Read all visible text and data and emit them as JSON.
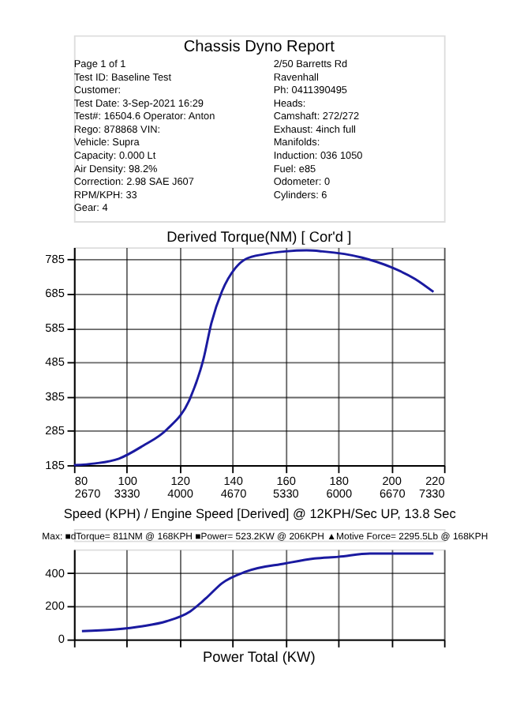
{
  "chart_data": [
    {
      "type": "other",
      "title": "Chassis Dyno Report",
      "annotations": [
        "Page 1 of 1",
        "2/50 Barretts Rd",
        "Test ID: Baseline Test",
        "Ravenhall",
        "Customer:",
        "Ph: 0411390495",
        "Test Date: 3-Sep-2021 16:29",
        "Heads:",
        "Test#: 16504.6 Operator: Anton",
        "Camshaft: 272/272",
        "Rego: 878868 VIN:",
        "Exhaust: 4inch full",
        "Vehicle: Supra",
        "Manifolds:",
        "Capacity: 0.000 Lt",
        "Induction: 036 1050",
        "Air Density: 98.2%",
        "Fuel: e85",
        "Correction: 2.98 SAE J607",
        "Odometer: 0",
        "RPM/KPH: 33",
        "Cylinders: 6",
        "Gear: 4"
      ]
    },
    {
      "type": "line",
      "title": "Derived Torque(NM)   [ Cor'd ]",
      "xlabel": "Speed (KPH) / Engine Speed [Derived] @ 12KPH/Sec UP, 13.8 Sec",
      "annotations": [
        "Max: ■dTorque= 811NM @ 168KPH ■Power= 523.2KW @ 206KPH ▲Motive Force= 2295.5Lb @ 168KPH"
      ],
      "x": [
        80,
        88,
        97,
        106,
        115,
        124,
        129,
        132,
        136,
        141,
        145,
        152,
        160,
        168,
        174,
        189,
        200,
        209,
        216
      ],
      "series": [
        {
          "color": "#1a1aa0",
          "values": [
            185,
            190,
            204,
            241,
            288,
            381,
            495,
            600,
            692,
            759,
            786,
            800,
            808,
            811,
            808,
            790,
            762,
            728,
            690
          ]
        }
      ],
      "xlim": [
        80,
        220
      ],
      "xticks": [
        80,
        100,
        120,
        140,
        160,
        180,
        200,
        220
      ],
      "x2lim": [
        2670,
        7330
      ],
      "x2ticks": [
        2670,
        3330,
        4000,
        4670,
        5330,
        6000,
        6670,
        7330
      ],
      "ylim": [
        185,
        820
      ],
      "yticks": [
        185,
        285,
        385,
        485,
        585,
        685,
        785
      ],
      "grid": true,
      "marker": "none",
      "line_style": "solid"
    },
    {
      "type": "line",
      "title": "Power Total (KW)",
      "x": [
        83,
        95,
        106,
        115,
        124,
        130,
        136,
        145,
        160,
        171,
        180,
        192,
        206,
        216
      ],
      "series": [
        {
          "color": "#1a1aa0",
          "values": [
            50,
            60,
            80,
            110,
            170,
            250,
            340,
            410,
            460,
            490,
            500,
            520,
            520,
            520
          ]
        }
      ],
      "xlim": [
        80,
        220
      ],
      "xticks": [
        80,
        100,
        120,
        140,
        160,
        180,
        200,
        220
      ],
      "ylim": [
        0,
        545
      ],
      "yticks": [
        0,
        200,
        400
      ],
      "tick_labels": "y",
      "grid": true,
      "marker": "none",
      "line_style": "solid"
    }
  ]
}
